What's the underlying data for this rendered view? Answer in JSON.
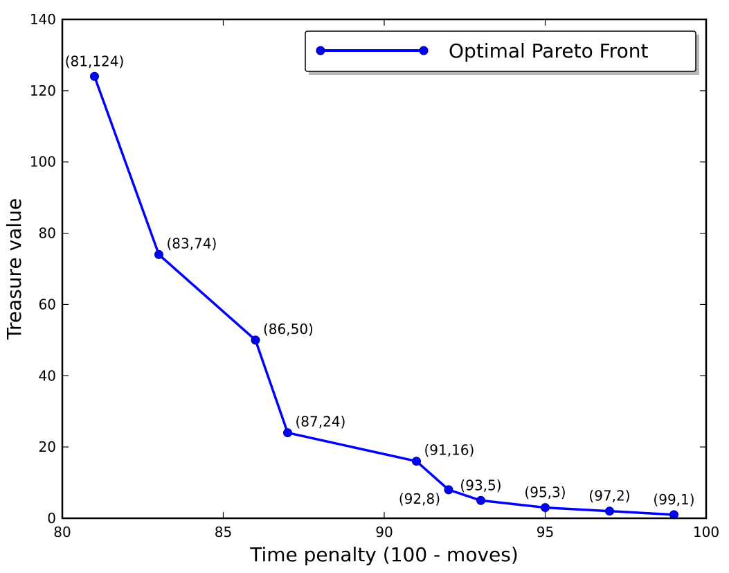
{
  "chart_data": {
    "type": "line",
    "xlabel": "Time penalty (100 - moves)",
    "ylabel": "Treasure value",
    "xlim": [
      80,
      100
    ],
    "ylim": [
      0,
      140
    ],
    "xticks": [
      80,
      85,
      90,
      95,
      100
    ],
    "yticks": [
      0,
      20,
      40,
      60,
      80,
      100,
      120,
      140
    ],
    "grid": false,
    "legend_position": "top-right",
    "series": [
      {
        "name": "Optimal Pareto Front",
        "color": "#0000ff",
        "marker": "circle",
        "x": [
          81,
          83,
          86,
          87,
          91,
          92,
          93,
          95,
          97,
          99
        ],
        "y": [
          124,
          74,
          50,
          24,
          16,
          8,
          5,
          3,
          2,
          1
        ]
      }
    ],
    "annotations": [
      {
        "text": "(81,124)",
        "x": 81,
        "y": 124,
        "position": "above"
      },
      {
        "text": "(83,74)",
        "x": 83,
        "y": 74,
        "position": "upper-right"
      },
      {
        "text": "(86,50)",
        "x": 86,
        "y": 50,
        "position": "upper-right"
      },
      {
        "text": "(87,24)",
        "x": 87,
        "y": 24,
        "position": "upper-right"
      },
      {
        "text": "(91,16)",
        "x": 91,
        "y": 16,
        "position": "upper-right"
      },
      {
        "text": "(92,8)",
        "x": 92,
        "y": 8,
        "position": "lower-left"
      },
      {
        "text": "(93,5)",
        "x": 93,
        "y": 5,
        "position": "above"
      },
      {
        "text": "(95,3)",
        "x": 95,
        "y": 3,
        "position": "above"
      },
      {
        "text": "(97,2)",
        "x": 97,
        "y": 2,
        "position": "above"
      },
      {
        "text": "(99,1)",
        "x": 99,
        "y": 1,
        "position": "above"
      }
    ]
  }
}
